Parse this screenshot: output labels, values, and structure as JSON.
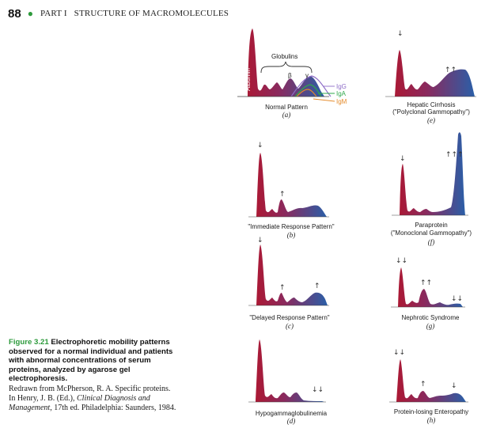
{
  "header": {
    "page_number": "88",
    "running_head": "PART I   STRUCTURE OF MACROMOLECULES"
  },
  "colors": {
    "albumin_red": "#b0162e",
    "globulin_blue": "#2a5fa8",
    "accent_green": "#2d9a3c"
  },
  "panels": [
    {
      "label": "Normal Pattern",
      "sub": "(a)",
      "arrows": []
    },
    {
      "label": "Hepatic Cirrhosis",
      "label2": "(\"Polyclonal Gammopathy\")",
      "sub": "(e)",
      "arrows": [
        "↓",
        "↑↑"
      ]
    },
    {
      "label": "\"Immediate Response Pattern\"",
      "sub": "(b)",
      "arrows": [
        "↓",
        "↑"
      ]
    },
    {
      "label": "Paraprotein",
      "label2": "(\"Monoclonal Gammopathy\")",
      "sub": "(f)",
      "arrows": [
        "↓",
        "↑↑↑"
      ]
    },
    {
      "label": "\"Delayed Response Pattern\"",
      "sub": "(c)",
      "arrows": [
        "↓",
        "↑",
        "↑"
      ]
    },
    {
      "label": "Nephrotic Syndrome",
      "sub": "(g)",
      "arrows": [
        "↓↓",
        "↑↑",
        "↓↓"
      ]
    },
    {
      "label": "Hypogammaglobulinemia",
      "sub": "(d)",
      "arrows": [
        "↓↓"
      ]
    },
    {
      "label": "Protein-losing Enteropathy",
      "sub": "(h)",
      "arrows": [
        "↓↓",
        "↑",
        "↓"
      ]
    }
  ],
  "normal_annotations": {
    "albumin": "Albumin",
    "globulins": "Globulins",
    "beta": "β",
    "gamma": "γ",
    "igg": "IgG",
    "iga": "IgA",
    "igm": "IgM"
  },
  "caption": {
    "number": "Figure 3.21",
    "title": "Electrophoretic mobility patterns observed for a normal individual and patients with abnormal concentrations of serum proteins, analyzed by agarose gel electrophoresis.",
    "source_1": "Redrawn from McPherson, R. A. Specific proteins. In Henry, J. B. (Ed.),",
    "source_italic": "Clinical Diagnosis and Management",
    "source_2": ", 17th ed. Philadelphia: Saunders, 1984."
  }
}
